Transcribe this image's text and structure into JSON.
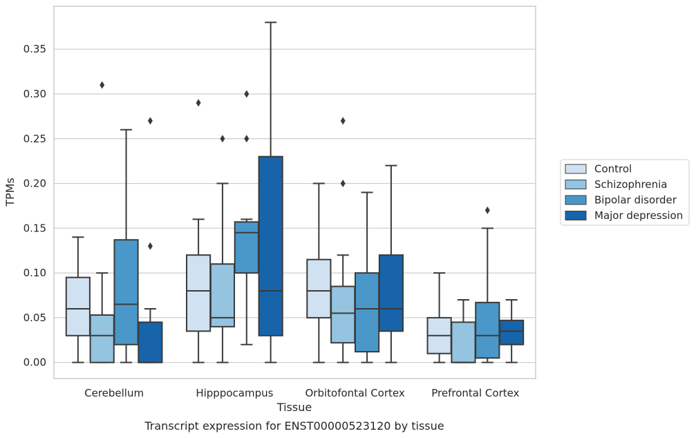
{
  "caption": "Transcript expression for ENST00000523120 by tissue",
  "chart_data": {
    "type": "boxplot",
    "xlabel": "Tissue",
    "ylabel": "TPMs",
    "ylim": [
      -0.018,
      0.398
    ],
    "yticks": [
      "0.00",
      "0.05",
      "0.10",
      "0.15",
      "0.20",
      "0.25",
      "0.30",
      "0.35"
    ],
    "grid": "horizontal",
    "legend_position": "right",
    "categories": [
      "Cerebellum",
      "Hipppocampus",
      "Orbitofontal Cortex",
      "Prefrontal Cortex"
    ],
    "series": [
      {
        "name": "Control",
        "color": "#d0e1f2",
        "boxes": [
          {
            "whislo": 0.0,
            "q1": 0.03,
            "med": 0.06,
            "q3": 0.095,
            "whishi": 0.14,
            "fliers": []
          },
          {
            "whislo": 0.0,
            "q1": 0.035,
            "med": 0.08,
            "q3": 0.12,
            "whishi": 0.16,
            "fliers": [
              0.29
            ]
          },
          {
            "whislo": 0.0,
            "q1": 0.05,
            "med": 0.08,
            "q3": 0.115,
            "whishi": 0.2,
            "fliers": []
          },
          {
            "whislo": 0.0,
            "q1": 0.01,
            "med": 0.03,
            "q3": 0.05,
            "whishi": 0.1,
            "fliers": []
          }
        ]
      },
      {
        "name": "Schizophrenia",
        "color": "#94c4df",
        "boxes": [
          {
            "whislo": 0.0,
            "q1": 0.0,
            "med": 0.03,
            "q3": 0.053,
            "whishi": 0.1,
            "fliers": [
              0.31
            ]
          },
          {
            "whislo": 0.0,
            "q1": 0.04,
            "med": 0.05,
            "q3": 0.11,
            "whishi": 0.2,
            "fliers": [
              0.25
            ]
          },
          {
            "whislo": 0.0,
            "q1": 0.022,
            "med": 0.055,
            "q3": 0.085,
            "whishi": 0.12,
            "fliers": [
              0.2,
              0.27
            ]
          },
          {
            "whislo": 0.0,
            "q1": 0.0,
            "med": 0.0,
            "q3": 0.045,
            "whishi": 0.07,
            "fliers": []
          }
        ]
      },
      {
        "name": "Bipolar disorder",
        "color": "#4a98c9",
        "boxes": [
          {
            "whislo": 0.0,
            "q1": 0.02,
            "med": 0.065,
            "q3": 0.137,
            "whishi": 0.26,
            "fliers": []
          },
          {
            "whislo": 0.02,
            "q1": 0.1,
            "med": 0.145,
            "q3": 0.157,
            "whishi": 0.16,
            "fliers": [
              0.25,
              0.3
            ]
          },
          {
            "whislo": 0.0,
            "q1": 0.012,
            "med": 0.06,
            "q3": 0.1,
            "whishi": 0.19,
            "fliers": []
          },
          {
            "whislo": 0.0,
            "q1": 0.005,
            "med": 0.03,
            "q3": 0.067,
            "whishi": 0.15,
            "fliers": [
              0.17
            ]
          }
        ]
      },
      {
        "name": "Major depression",
        "color": "#1764ab",
        "boxes": [
          {
            "whislo": 0.0,
            "q1": 0.0,
            "med": 0.0,
            "q3": 0.045,
            "whishi": 0.06,
            "fliers": [
              0.13,
              0.27
            ]
          },
          {
            "whislo": 0.0,
            "q1": 0.03,
            "med": 0.08,
            "q3": 0.23,
            "whishi": 0.38,
            "fliers": []
          },
          {
            "whislo": 0.0,
            "q1": 0.035,
            "med": 0.06,
            "q3": 0.12,
            "whishi": 0.22,
            "fliers": []
          },
          {
            "whislo": 0.0,
            "q1": 0.02,
            "med": 0.035,
            "q3": 0.047,
            "whishi": 0.07,
            "fliers": []
          }
        ]
      }
    ]
  }
}
